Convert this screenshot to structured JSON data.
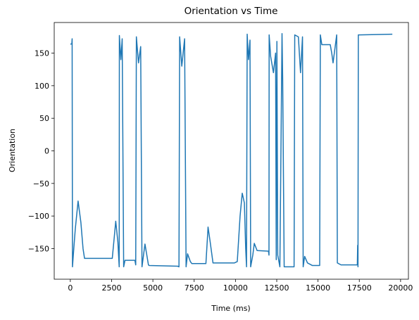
{
  "chart_data": {
    "type": "line",
    "title": "Orientation vs Time",
    "xlabel": "Time (ms)",
    "ylabel": "Orientation",
    "x": [
      0,
      90,
      110,
      130,
      210,
      300,
      470,
      640,
      770,
      860,
      2540,
      2670,
      2750,
      2880,
      2960,
      2970,
      3060,
      3140,
      3230,
      3310,
      3910,
      3960,
      4000,
      4130,
      4260,
      4340,
      4520,
      4600,
      4730,
      4780,
      6500,
      6580,
      6620,
      6750,
      6920,
      7010,
      7100,
      7270,
      7360,
      8210,
      8300,
      8340,
      8470,
      8640,
      9940,
      10110,
      10280,
      10410,
      10540,
      10620,
      10670,
      10710,
      10790,
      10880,
      10920,
      11050,
      11140,
      11310,
      12000,
      12030,
      12040,
      12130,
      12300,
      12430,
      12470,
      12510,
      12560,
      12690,
      12820,
      12860,
      12950,
      13550,
      13590,
      13810,
      13940,
      14060,
      14100,
      14190,
      14360,
      14660,
      15100,
      15140,
      15230,
      15740,
      15830,
      15910,
      16130,
      16170,
      16390,
      17380,
      17400,
      17420,
      17440,
      17510,
      19500
    ],
    "values": [
      164,
      164,
      172,
      -178,
      -150,
      -120,
      -77,
      -110,
      -150,
      -165,
      -165,
      -130,
      -108,
      -140,
      -178,
      177,
      140,
      172,
      -178,
      -168,
      -168,
      -175,
      175,
      135,
      160,
      -178,
      -143,
      -155,
      -175,
      -176,
      -177,
      -178,
      175,
      130,
      172,
      -178,
      -158,
      -170,
      -173,
      -173,
      -135,
      -117,
      -140,
      -172,
      -172,
      -170,
      -100,
      -65,
      -80,
      -150,
      -178,
      179,
      140,
      170,
      -178,
      -160,
      -142,
      -153,
      -154,
      -160,
      178,
      145,
      120,
      150,
      -167,
      168,
      -160,
      -178,
      180,
      110,
      -178,
      -178,
      178,
      175,
      120,
      175,
      -178,
      -162,
      -172,
      -176,
      -176,
      178,
      163,
      163,
      150,
      135,
      178,
      -172,
      -175,
      -175,
      -145,
      -178,
      178,
      178,
      179
    ],
    "color": "#1f77b4",
    "xlim": [
      -975,
      20475
    ],
    "ylim": [
      -197,
      197
    ],
    "xticks": [
      0,
      2500,
      5000,
      7500,
      10000,
      12500,
      15000,
      17500,
      20000
    ],
    "yticks": [
      {
        "value": -150,
        "label": "−150"
      },
      {
        "value": -100,
        "label": "−100"
      },
      {
        "value": -50,
        "label": "−50"
      },
      0,
      50,
      100,
      150
    ],
    "grid": false
  }
}
